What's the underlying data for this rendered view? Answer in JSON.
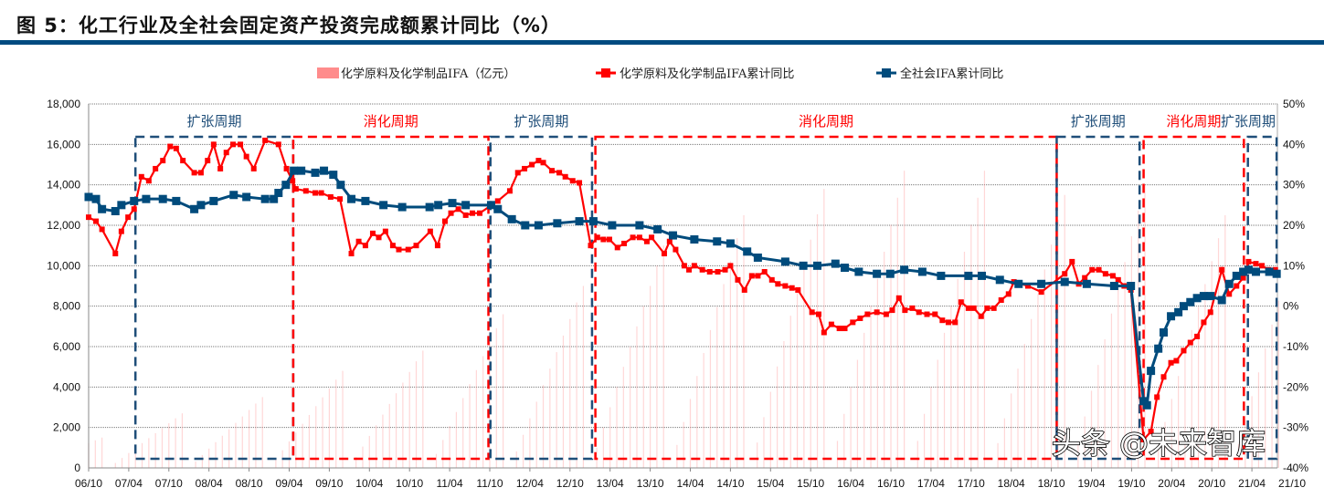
{
  "title": "图 5：化工行业及全社会固定资产投资完成额累计同比（%）",
  "watermark": "头条 @未来智库",
  "colors": {
    "rule": "#004b80",
    "red": "#ff0000",
    "blue": "#004b7c",
    "bar": "#ff8c8c",
    "blue_box": "#1f4e79"
  },
  "chart_data": {
    "type": "bar+line",
    "title": "化工行业及全社会固定资产投资完成额累计同比（%）",
    "x_unit": "months since 2006-10",
    "x_start": "2006-10",
    "xticks": [
      "06/10",
      "07/04",
      "07/10",
      "08/04",
      "08/10",
      "09/04",
      "09/10",
      "10/04",
      "10/10",
      "11/04",
      "11/10",
      "12/04",
      "12/10",
      "13/04",
      "13/10",
      "14/04",
      "14/10",
      "15/04",
      "15/10",
      "16/04",
      "16/10",
      "17/04",
      "17/10",
      "18/04",
      "18/10",
      "19/04",
      "19/10",
      "20/04",
      "20/10",
      "21/04",
      "21/10"
    ],
    "y_left": {
      "ticks": [
        "0",
        "2,000",
        "4,000",
        "6,000",
        "8,000",
        "10,000",
        "12,000",
        "14,000",
        "16,000",
        "18,000"
      ],
      "lim": [
        0,
        18000
      ]
    },
    "y_right": {
      "ticks": [
        "-40%",
        "-30%",
        "-20%",
        "-10%",
        "0%",
        "10%",
        "20%",
        "30%",
        "40%",
        "50%"
      ],
      "lim": [
        -40,
        50
      ]
    },
    "legend": [
      "化学原料及化学制品IFA（亿元）",
      "化学原料及化学制品IFA累计同比",
      "全社会IFA累计同比"
    ],
    "bars": {
      "name": "化学原料及化学制品IFA（亿元）",
      "axis": "left",
      "dec_cumulative_by_year": {
        "2006": 1500,
        "2007": 2700,
        "2008": 3500,
        "2009": 4800,
        "2010": 5800,
        "2011": 7600,
        "2012": 9000,
        "2013": 11000,
        "2014": 12500,
        "2015": 13800,
        "2016": 14700,
        "2017": 14700,
        "2018": 13500,
        "2019": 14000,
        "2020": 12500,
        "2021": 13000
      }
    },
    "series": [
      {
        "name": "化学原料及化学制品IFA累计同比",
        "axis": "right",
        "color": "#ff0000",
        "points": [
          [
            0,
            22
          ],
          [
            1.1,
            21
          ],
          [
            2,
            19
          ],
          [
            4,
            13
          ],
          [
            4.9,
            18.5
          ],
          [
            5.9,
            22
          ],
          [
            6.8,
            24
          ],
          [
            7.9,
            32
          ],
          [
            9,
            31
          ],
          [
            10,
            34
          ],
          [
            11.1,
            36
          ],
          [
            12.2,
            39.5
          ],
          [
            13.1,
            39
          ],
          [
            14.1,
            36
          ],
          [
            15.8,
            33
          ],
          [
            16.8,
            33
          ],
          [
            17.8,
            36
          ],
          [
            18.7,
            40
          ],
          [
            19.7,
            34
          ],
          [
            20.6,
            38
          ],
          [
            21.6,
            40
          ],
          [
            22.7,
            40
          ],
          [
            23.6,
            37
          ],
          [
            24.7,
            34
          ],
          [
            26.4,
            41
          ],
          [
            28.4,
            40
          ],
          [
            29.6,
            34
          ],
          [
            30.5,
            31
          ],
          [
            31,
            29
          ],
          [
            32.5,
            28.5
          ],
          [
            33.9,
            28
          ],
          [
            34.8,
            28
          ],
          [
            36.2,
            27
          ],
          [
            37.6,
            26.5
          ],
          [
            39.3,
            13
          ],
          [
            40.4,
            16
          ],
          [
            41.4,
            15
          ],
          [
            42.5,
            18
          ],
          [
            43.4,
            17
          ],
          [
            44.4,
            18.5
          ],
          [
            45.5,
            15
          ],
          [
            46.4,
            14
          ],
          [
            47.8,
            14
          ],
          [
            49,
            15
          ],
          [
            51.1,
            18.5
          ],
          [
            52.2,
            15
          ],
          [
            53.3,
            21
          ],
          [
            54.2,
            23
          ],
          [
            55.3,
            24
          ],
          [
            56.4,
            22.5
          ],
          [
            57.4,
            23
          ],
          [
            58.5,
            23
          ],
          [
            61.2,
            26
          ],
          [
            63,
            28.5
          ],
          [
            64.2,
            33
          ],
          [
            65.2,
            34
          ],
          [
            66.3,
            35
          ],
          [
            67.3,
            36
          ],
          [
            68,
            35.5
          ],
          [
            69.3,
            33.5
          ],
          [
            70.4,
            33
          ],
          [
            71.3,
            32
          ],
          [
            72.4,
            31
          ],
          [
            73.4,
            30.5
          ],
          [
            75.1,
            15
          ],
          [
            76.1,
            17
          ],
          [
            77,
            16.5
          ],
          [
            77.9,
            16.5
          ],
          [
            79.1,
            14.5
          ],
          [
            80.1,
            15.5
          ],
          [
            81.4,
            17
          ],
          [
            82.4,
            17
          ],
          [
            83.5,
            16
          ],
          [
            84.2,
            17
          ],
          [
            86.1,
            13
          ],
          [
            86.9,
            16
          ],
          [
            87.8,
            14
          ],
          [
            89.1,
            10
          ],
          [
            89.8,
            9
          ],
          [
            90.6,
            10
          ],
          [
            91.8,
            9
          ],
          [
            92.9,
            8.5
          ],
          [
            94.1,
            8.5
          ],
          [
            95.2,
            9
          ],
          [
            96,
            10
          ],
          [
            97.1,
            6.5
          ],
          [
            98.1,
            4
          ],
          [
            99.2,
            7.5
          ],
          [
            100.1,
            7.5
          ],
          [
            101.1,
            8.5
          ],
          [
            102.2,
            6.5
          ],
          [
            103.1,
            5.5
          ],
          [
            104.2,
            5
          ],
          [
            105.2,
            4.5
          ],
          [
            106.1,
            4
          ],
          [
            108.2,
            -1.5
          ],
          [
            109.2,
            -2
          ],
          [
            110,
            -6.5
          ],
          [
            111.1,
            -4.5
          ],
          [
            112.3,
            -5.5
          ],
          [
            113.1,
            -5.5
          ],
          [
            114.3,
            -4
          ],
          [
            115.4,
            -3
          ],
          [
            116.5,
            -2
          ],
          [
            117.9,
            -1.5
          ],
          [
            119.3,
            -2
          ],
          [
            120.2,
            -1
          ],
          [
            121.2,
            2
          ],
          [
            122.1,
            -1
          ],
          [
            123.2,
            -0.5
          ],
          [
            124.2,
            -1.5
          ],
          [
            125.4,
            -2
          ],
          [
            126.6,
            -2
          ],
          [
            127.7,
            -3.5
          ],
          [
            128.6,
            -4
          ],
          [
            129.6,
            -4
          ],
          [
            130.5,
            1
          ],
          [
            131.6,
            -0.5
          ],
          [
            132.4,
            -0.5
          ],
          [
            133.5,
            -2.5
          ],
          [
            134.4,
            -0.5
          ],
          [
            135.4,
            -0.5
          ],
          [
            136.5,
            1.5
          ],
          [
            137.6,
            3
          ],
          [
            138.4,
            6
          ],
          [
            140.5,
            5
          ],
          [
            142.5,
            3.5
          ],
          [
            146,
            8
          ],
          [
            147.1,
            11
          ],
          [
            148.1,
            5.5
          ],
          [
            149,
            7
          ],
          [
            150.1,
            9
          ],
          [
            151.1,
            9
          ],
          [
            152.1,
            8
          ],
          [
            153.2,
            7.5
          ],
          [
            154,
            6.5
          ],
          [
            154.9,
            5
          ],
          [
            155.9,
            4
          ],
          [
            157.8,
            -33
          ],
          [
            158.9,
            -31
          ],
          [
            159.8,
            -22.5
          ],
          [
            160.8,
            -17.5
          ],
          [
            161.9,
            -14
          ],
          [
            162.7,
            -13.5
          ],
          [
            163.8,
            -11
          ],
          [
            164.8,
            -9
          ],
          [
            165.8,
            -7.5
          ],
          [
            166.8,
            -4
          ],
          [
            167.8,
            -1.5
          ],
          [
            169.5,
            9
          ],
          [
            170.6,
            3
          ],
          [
            171.7,
            5
          ],
          [
            172.7,
            7
          ],
          [
            173.5,
            11
          ],
          [
            174.6,
            10.5
          ],
          [
            175.5,
            10
          ],
          [
            176.5,
            9
          ],
          [
            177.5,
            9
          ]
        ]
      },
      {
        "name": "全社会IFA累计同比",
        "axis": "right",
        "color": "#004b7c",
        "points": [
          [
            0,
            27
          ],
          [
            1.1,
            26.5
          ],
          [
            2,
            24
          ],
          [
            4,
            23.5
          ],
          [
            4.9,
            25
          ],
          [
            6.8,
            26
          ],
          [
            8.6,
            26.5
          ],
          [
            11.1,
            26.5
          ],
          [
            13.1,
            26
          ],
          [
            15.8,
            24
          ],
          [
            16.8,
            25
          ],
          [
            18.7,
            26
          ],
          [
            21.7,
            27.5
          ],
          [
            23.6,
            27
          ],
          [
            26.4,
            26.5
          ],
          [
            27.7,
            26.5
          ],
          [
            28.4,
            28
          ],
          [
            29.5,
            30
          ],
          [
            30.7,
            33.5
          ],
          [
            31.8,
            33.5
          ],
          [
            33.9,
            33
          ],
          [
            35.2,
            33.5
          ],
          [
            36.6,
            32.5
          ],
          [
            37.7,
            30
          ],
          [
            39.3,
            26.5
          ],
          [
            41.4,
            26
          ],
          [
            44.1,
            25
          ],
          [
            46.9,
            24.5
          ],
          [
            51,
            24.5
          ],
          [
            52.3,
            25
          ],
          [
            54.4,
            25.5
          ],
          [
            56.4,
            25
          ],
          [
            60.2,
            25
          ],
          [
            61.2,
            24
          ],
          [
            63.3,
            21.5
          ],
          [
            65.3,
            20
          ],
          [
            67.3,
            20
          ],
          [
            70.1,
            20.5
          ],
          [
            73.4,
            21
          ],
          [
            75.5,
            21
          ],
          [
            78.3,
            20
          ],
          [
            82.4,
            20
          ],
          [
            85.1,
            19
          ],
          [
            87.4,
            17.5
          ],
          [
            90.6,
            16.5
          ],
          [
            94,
            16
          ],
          [
            96,
            15.5
          ],
          [
            98.5,
            13.5
          ],
          [
            100.1,
            12
          ],
          [
            104.2,
            11
          ],
          [
            106.9,
            10
          ],
          [
            109,
            10
          ],
          [
            111.7,
            10.5
          ],
          [
            113.1,
            9.5
          ],
          [
            115.2,
            8.5
          ],
          [
            117.9,
            8
          ],
          [
            119.9,
            8
          ],
          [
            122,
            9
          ],
          [
            124.7,
            8.5
          ],
          [
            127.5,
            7.5
          ],
          [
            131.6,
            7.5
          ],
          [
            133.6,
            7.5
          ],
          [
            136.3,
            6.5
          ],
          [
            139.1,
            5.5
          ],
          [
            142.5,
            5.5
          ],
          [
            146,
            6
          ],
          [
            149.3,
            5.5
          ],
          [
            153.4,
            5
          ],
          [
            155.9,
            5
          ],
          [
            157.8,
            -23.5
          ],
          [
            158.3,
            -24.5
          ],
          [
            158.9,
            -16
          ],
          [
            160,
            -10.5
          ],
          [
            160.8,
            -6.5
          ],
          [
            161.9,
            -2.5
          ],
          [
            163,
            -1.5
          ],
          [
            163.8,
            0
          ],
          [
            164.8,
            1
          ],
          [
            165.8,
            2
          ],
          [
            166.8,
            2.5
          ],
          [
            167.8,
            2.5
          ],
          [
            169.5,
            1.5
          ],
          [
            170.6,
            5.5
          ],
          [
            171.7,
            7.5
          ],
          [
            172.7,
            8.5
          ],
          [
            173.5,
            9
          ],
          [
            174.6,
            8.5
          ],
          [
            176.6,
            8.5
          ],
          [
            177.7,
            8
          ]
        ]
      }
    ],
    "periods": [
      {
        "label": "扩张周期",
        "type": "expansion",
        "start": 7.0,
        "end": 30.6
      },
      {
        "label": "消化周期",
        "type": "digestion",
        "start": 30.6,
        "end": 59.8
      },
      {
        "label": "扩张周期",
        "type": "expansion",
        "start": 60.1,
        "end": 75.3
      },
      {
        "label": "消化周期",
        "type": "digestion",
        "start": 75.8,
        "end": 144.8
      },
      {
        "label": "扩张周期",
        "type": "expansion",
        "start": 144.8,
        "end": 157.2
      },
      {
        "label": "消化周期",
        "type": "digestion",
        "start": 157.8,
        "end": 172.8
      },
      {
        "label": "扩张周期",
        "type": "expansion",
        "start": 173.4,
        "end": 177.7
      }
    ],
    "grid": true,
    "legend_position": "top-center"
  }
}
